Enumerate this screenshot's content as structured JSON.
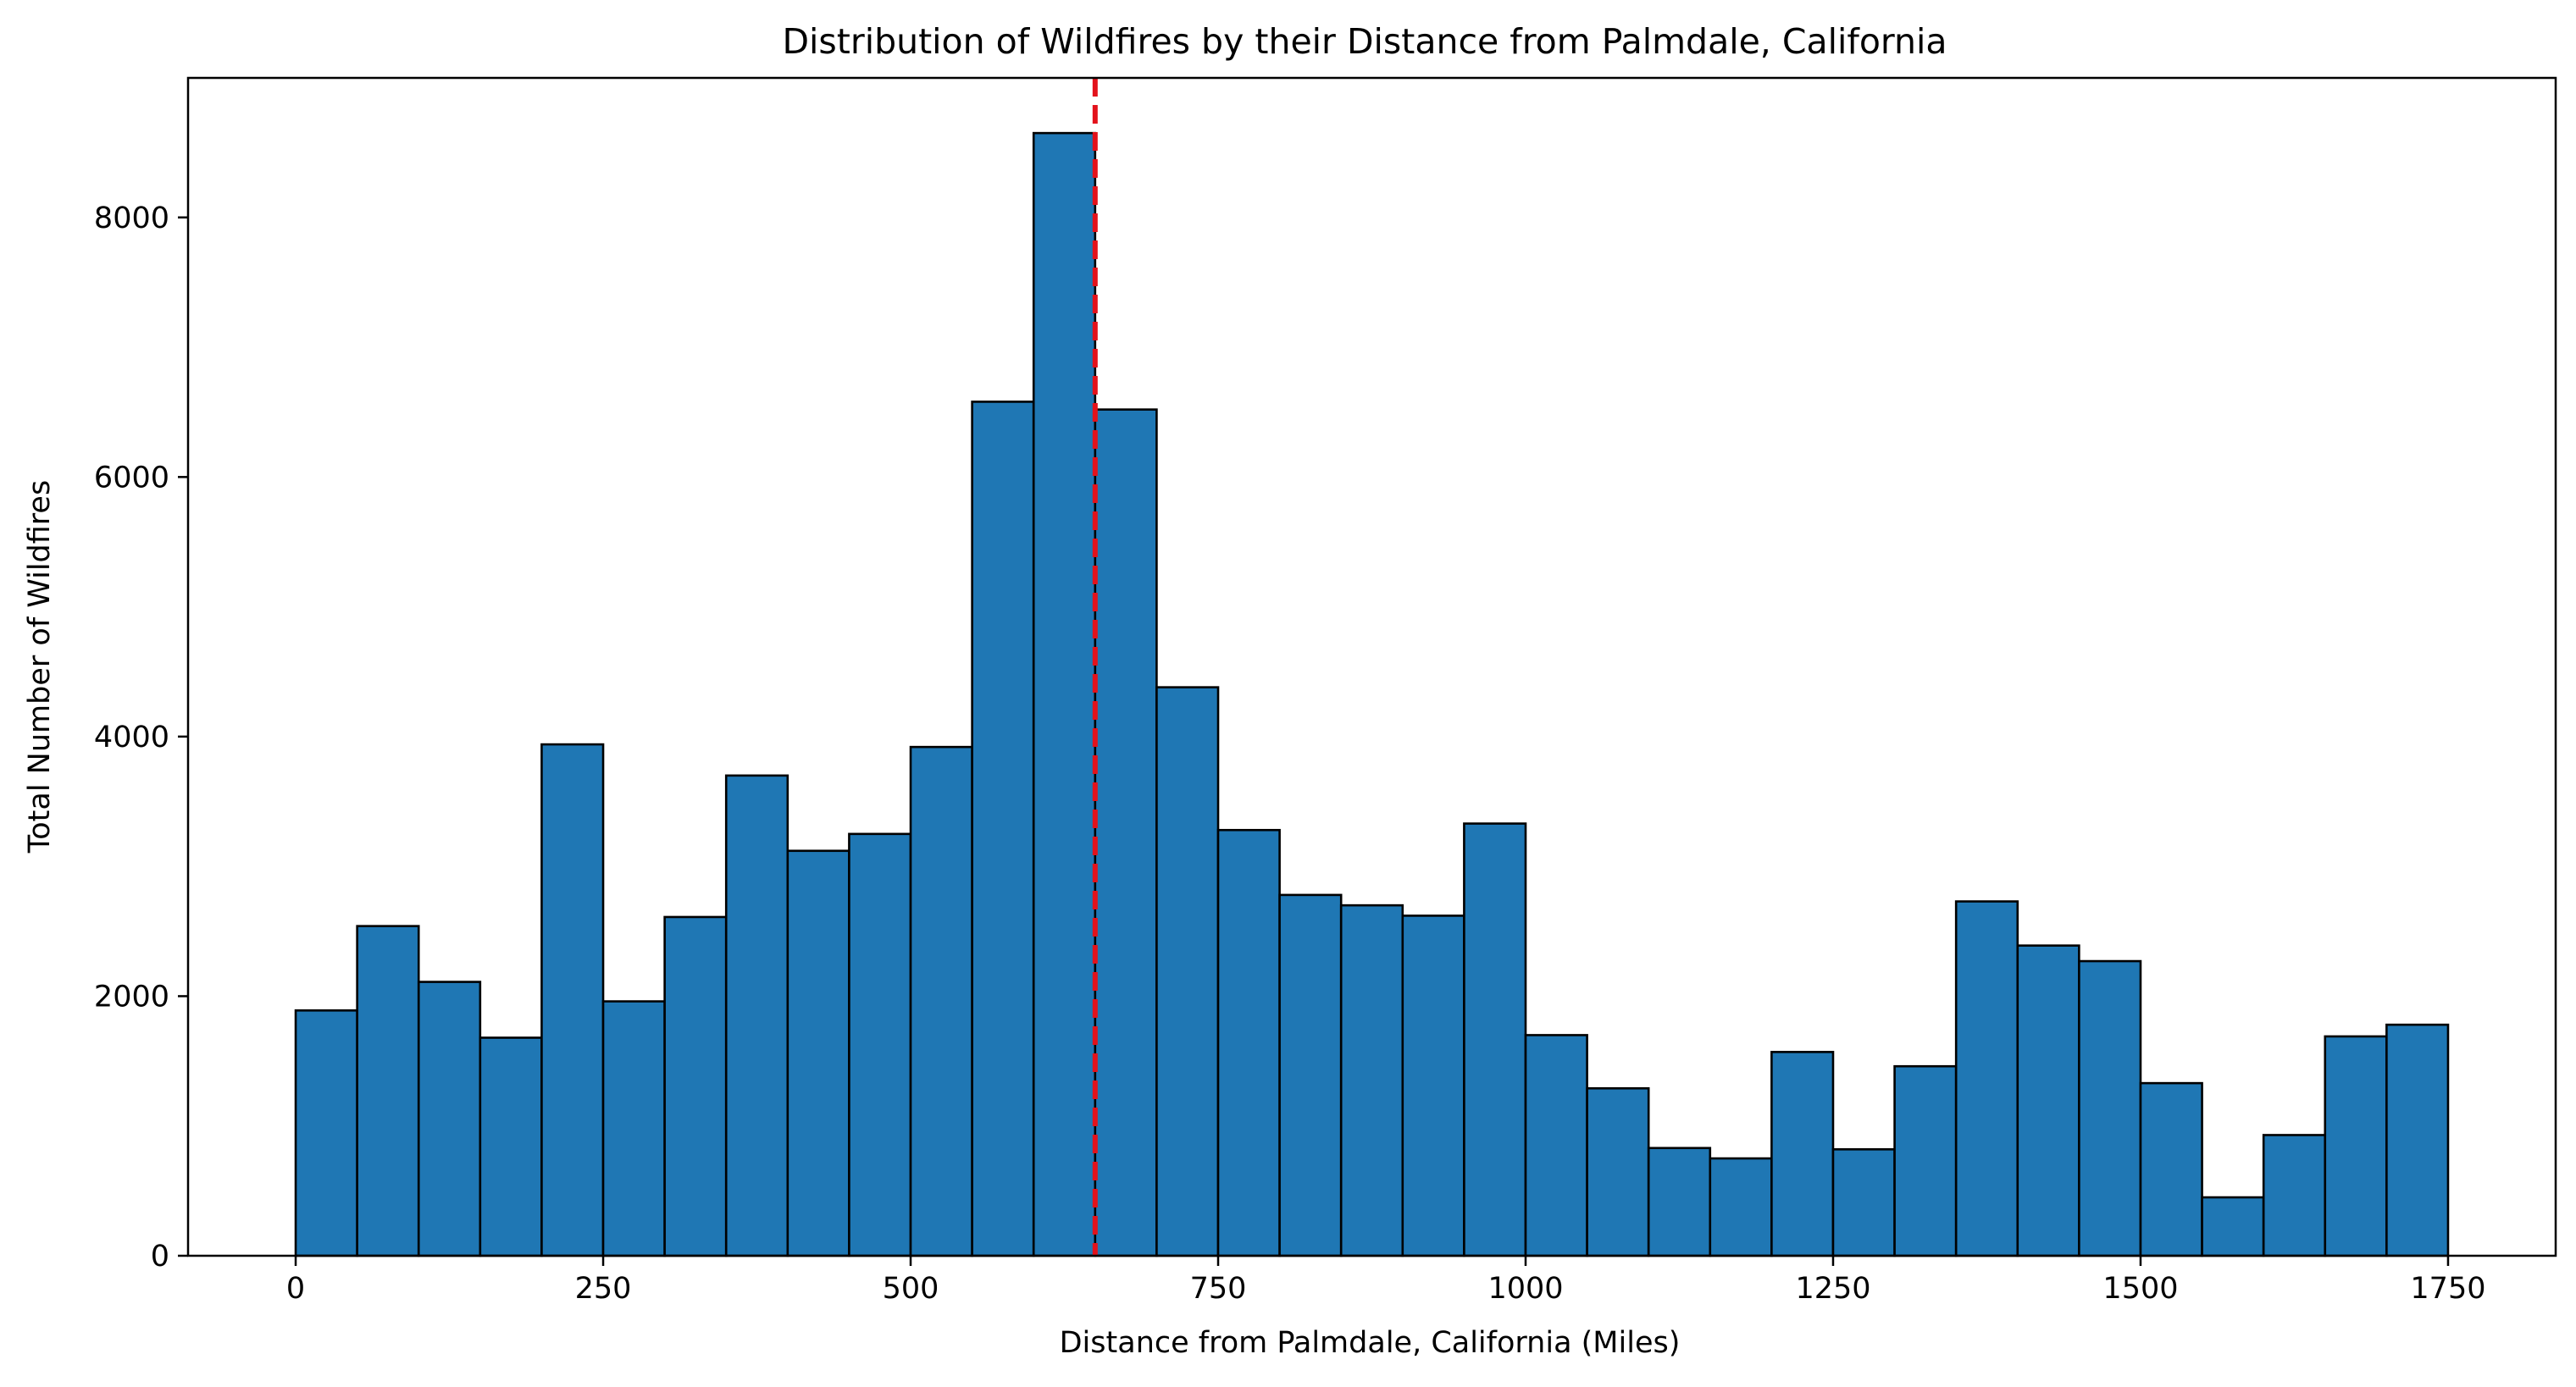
{
  "chart_data": {
    "type": "bar",
    "title": "Distribution of Wildfires by their Distance from Palmdale, California",
    "xlabel": "Distance from Palmdale, California (Miles)",
    "ylabel": "Total Number of Wildfires",
    "xlim": [
      -87.5,
      1837.5
    ],
    "ylim": [
      0,
      9075
    ],
    "bin_width": 50,
    "bin_edges": [
      0,
      50,
      100,
      150,
      200,
      250,
      300,
      350,
      400,
      450,
      500,
      550,
      600,
      650,
      700,
      750,
      800,
      850,
      900,
      950,
      1000,
      1050,
      1100,
      1150,
      1200,
      1250,
      1300,
      1350,
      1400,
      1450,
      1500,
      1550,
      1600,
      1650,
      1700,
      1750
    ],
    "values": [
      1890,
      2540,
      2110,
      1680,
      3940,
      1960,
      2610,
      3700,
      3120,
      3250,
      3920,
      6580,
      8650,
      6520,
      4380,
      3280,
      2780,
      2700,
      2620,
      3330,
      1700,
      1290,
      830,
      750,
      1570,
      820,
      1460,
      2730,
      2390,
      2270,
      1330,
      450,
      930,
      1690,
      1780
    ],
    "x_ticks": [
      0,
      250,
      500,
      750,
      1000,
      1250,
      1500,
      1750
    ],
    "x_tick_labels": [
      "0",
      "250",
      "500",
      "750",
      "1000",
      "1250",
      "1500",
      "1750"
    ],
    "y_ticks": [
      0,
      2000,
      4000,
      6000,
      8000
    ],
    "y_tick_labels": [
      "0",
      "2000",
      "4000",
      "6000",
      "8000"
    ],
    "reference_line": {
      "x": 650,
      "style": "dashed",
      "color": "#e3121b"
    },
    "bar_color": "#1f77b4",
    "edge_color": "#000000",
    "grid": false,
    "legend": "none"
  }
}
